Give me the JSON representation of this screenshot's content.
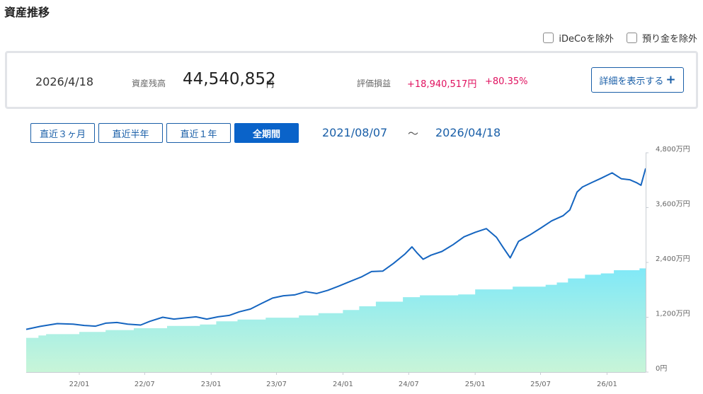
{
  "header": {
    "title": "資産推移"
  },
  "options": [
    {
      "label": "iDeCoを除外",
      "checked": false
    },
    {
      "label": "預り金を除外",
      "checked": false
    }
  ],
  "summary": {
    "date": "2026/4/18",
    "balance_label": "資産残高",
    "balance": "44,540,852",
    "balance_unit": "円",
    "pl_label": "評価損益",
    "pl_amount": "+18,940,517円",
    "pl_percent": "+80.35%",
    "detail_button": "詳細を表示する",
    "detail_button_icon": "plus-icon"
  },
  "periods": [
    {
      "label": "直近３ヶ月",
      "active": false
    },
    {
      "label": "直近半年",
      "active": false
    },
    {
      "label": "直近１年",
      "active": false
    },
    {
      "label": "全期間",
      "active": true
    }
  ],
  "range": {
    "start": "2021/08/07",
    "separator": "～",
    "end": "2026/04/18"
  },
  "colors": {
    "accent": "#1a5fa8",
    "active": "#0a63c9",
    "gain": "#e0115f",
    "line": "#1565c0",
    "area_top": "#7ee8f8",
    "area_bottom": "#c8f5d8"
  },
  "chart_data": {
    "type": "line",
    "title": "",
    "xlabel": "",
    "ylabel": "",
    "x_range": [
      "2021-08-07",
      "2026-04-18"
    ],
    "xticks": [
      {
        "label": "22/01",
        "date": "2022-01-01"
      },
      {
        "label": "22/07",
        "date": "2022-07-01"
      },
      {
        "label": "23/01",
        "date": "2023-01-01"
      },
      {
        "label": "23/07",
        "date": "2023-07-01"
      },
      {
        "label": "24/01",
        "date": "2024-01-01"
      },
      {
        "label": "24/07",
        "date": "2024-07-01"
      },
      {
        "label": "25/01",
        "date": "2025-01-01"
      },
      {
        "label": "25/07",
        "date": "2025-07-01"
      },
      {
        "label": "26/01",
        "date": "2026-01-01"
      }
    ],
    "yticks": [
      {
        "label": "0円",
        "value": 0
      },
      {
        "label": "1,200万円",
        "value": 1200
      },
      {
        "label": "2,400万円",
        "value": 2400
      },
      {
        "label": "3,600万円",
        "value": 3600
      },
      {
        "label": "4,800万円",
        "value": 4800
      }
    ],
    "ylim": [
      0,
      4800
    ],
    "grid": false,
    "series": [
      {
        "type": "line",
        "values": [
          [
            "2021-08-07",
            935
          ],
          [
            "2021-09-15",
            1000
          ],
          [
            "2021-11-01",
            1060
          ],
          [
            "2021-12-15",
            1050
          ],
          [
            "2022-01-15",
            1020
          ],
          [
            "2022-02-15",
            1005
          ],
          [
            "2022-03-15",
            1070
          ],
          [
            "2022-04-15",
            1085
          ],
          [
            "2022-05-15",
            1050
          ],
          [
            "2022-06-20",
            1030
          ],
          [
            "2022-07-15",
            1110
          ],
          [
            "2022-08-20",
            1200
          ],
          [
            "2022-09-20",
            1160
          ],
          [
            "2022-10-20",
            1185
          ],
          [
            "2022-11-20",
            1210
          ],
          [
            "2022-12-20",
            1160
          ],
          [
            "2023-01-20",
            1210
          ],
          [
            "2023-02-20",
            1240
          ],
          [
            "2023-03-20",
            1320
          ],
          [
            "2023-04-20",
            1380
          ],
          [
            "2023-05-20",
            1500
          ],
          [
            "2023-06-20",
            1620
          ],
          [
            "2023-07-20",
            1670
          ],
          [
            "2023-08-20",
            1690
          ],
          [
            "2023-09-20",
            1760
          ],
          [
            "2023-10-20",
            1720
          ],
          [
            "2023-11-20",
            1790
          ],
          [
            "2023-12-20",
            1880
          ],
          [
            "2024-01-20",
            1980
          ],
          [
            "2024-02-20",
            2080
          ],
          [
            "2024-03-20",
            2200
          ],
          [
            "2024-04-20",
            2210
          ],
          [
            "2024-05-20",
            2380
          ],
          [
            "2024-06-20",
            2580
          ],
          [
            "2024-07-10",
            2740
          ],
          [
            "2024-07-25",
            2600
          ],
          [
            "2024-08-10",
            2470
          ],
          [
            "2024-09-01",
            2560
          ],
          [
            "2024-10-01",
            2640
          ],
          [
            "2024-11-01",
            2790
          ],
          [
            "2024-12-01",
            2960
          ],
          [
            "2025-01-01",
            3060
          ],
          [
            "2025-02-01",
            3140
          ],
          [
            "2025-03-01",
            2950
          ],
          [
            "2025-03-20",
            2720
          ],
          [
            "2025-04-08",
            2500
          ],
          [
            "2025-05-01",
            2860
          ],
          [
            "2025-06-01",
            3000
          ],
          [
            "2025-07-01",
            3150
          ],
          [
            "2025-08-01",
            3310
          ],
          [
            "2025-09-01",
            3420
          ],
          [
            "2025-09-20",
            3550
          ],
          [
            "2025-10-10",
            3940
          ],
          [
            "2025-10-25",
            4050
          ],
          [
            "2025-11-20",
            4150
          ],
          [
            "2025-12-15",
            4240
          ],
          [
            "2026-01-15",
            4360
          ],
          [
            "2026-02-10",
            4230
          ],
          [
            "2026-03-05",
            4210
          ],
          [
            "2026-03-25",
            4140
          ],
          [
            "2026-04-05",
            4090
          ],
          [
            "2026-04-18",
            4460
          ]
        ]
      },
      {
        "type": "area",
        "values": [
          [
            "2021-08-07",
            750
          ],
          [
            "2021-09-10",
            800
          ],
          [
            "2021-10-01",
            830
          ],
          [
            "2022-01-01",
            880
          ],
          [
            "2022-03-15",
            920
          ],
          [
            "2022-06-01",
            960
          ],
          [
            "2022-09-01",
            1010
          ],
          [
            "2022-12-01",
            1040
          ],
          [
            "2023-01-15",
            1110
          ],
          [
            "2023-03-15",
            1150
          ],
          [
            "2023-06-01",
            1190
          ],
          [
            "2023-09-01",
            1240
          ],
          [
            "2023-10-25",
            1290
          ],
          [
            "2024-01-01",
            1360
          ],
          [
            "2024-02-15",
            1440
          ],
          [
            "2024-04-01",
            1540
          ],
          [
            "2024-06-15",
            1640
          ],
          [
            "2024-08-01",
            1680
          ],
          [
            "2024-11-15",
            1700
          ],
          [
            "2025-01-01",
            1810
          ],
          [
            "2025-04-15",
            1870
          ],
          [
            "2025-07-15",
            1910
          ],
          [
            "2025-08-15",
            1960
          ],
          [
            "2025-09-15",
            2050
          ],
          [
            "2025-11-01",
            2130
          ],
          [
            "2025-12-15",
            2160
          ],
          [
            "2026-01-20",
            2230
          ],
          [
            "2026-04-01",
            2270
          ],
          [
            "2026-04-18",
            2340
          ]
        ]
      }
    ]
  }
}
